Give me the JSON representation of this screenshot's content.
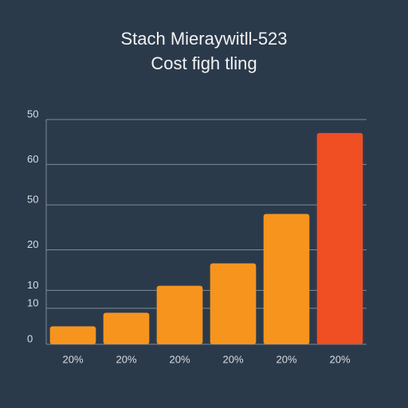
{
  "chart_data": {
    "type": "bar",
    "title": "Stach Mieraywitll-523",
    "subtitle": "Cost figh tling",
    "categories": [
      "20%",
      "20%",
      "20%",
      "20%",
      "20%",
      "20%"
    ],
    "values": [
      4,
      7,
      13,
      18,
      29,
      47
    ],
    "colors": [
      "#f7941d",
      "#f7941d",
      "#f7941d",
      "#f7941d",
      "#f7941d",
      "#f04e23"
    ],
    "ylim": [
      0,
      50
    ],
    "yticks": [
      0,
      {
        "value": 8,
        "label": "10"
      },
      {
        "value": 12,
        "label": "10"
      },
      {
        "value": 21,
        "label": "20"
      },
      {
        "value": 31,
        "label": "50"
      },
      {
        "value": 40,
        "label": "60"
      },
      50
    ],
    "grid": true
  }
}
